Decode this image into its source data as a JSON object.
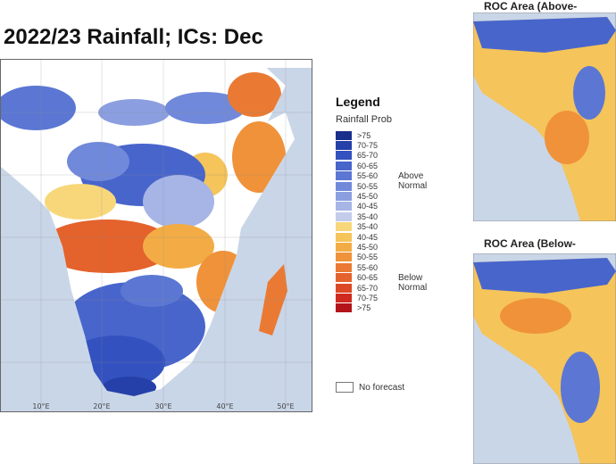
{
  "main": {
    "title": "2022/23 Rainfall; ICs: Dec",
    "lon_ticks": [
      "10°E",
      "20°E",
      "30°E",
      "40°E",
      "50°E"
    ]
  },
  "legend": {
    "title": "Legend",
    "subtitle": "Rainfall Prob",
    "items": [
      {
        "label": ">75",
        "color": "#1a2e8c"
      },
      {
        "label": "70-75",
        "color": "#2540a8"
      },
      {
        "label": "65-70",
        "color": "#3452bf"
      },
      {
        "label": "60-65",
        "color": "#4865cc"
      },
      {
        "label": "55-60",
        "color": "#5b77d3"
      },
      {
        "label": "50-55",
        "color": "#7189da"
      },
      {
        "label": "45-50",
        "color": "#8b9fe0"
      },
      {
        "label": "40-45",
        "color": "#a6b5e6"
      },
      {
        "label": "35-40",
        "color": "#c3cceb"
      },
      {
        "label": "35-40",
        "color": "#f7d77a"
      },
      {
        "label": "40-45",
        "color": "#f5c45a"
      },
      {
        "label": "45-50",
        "color": "#f3ac45"
      },
      {
        "label": "50-55",
        "color": "#ef923a"
      },
      {
        "label": "55-60",
        "color": "#ea7a33"
      },
      {
        "label": "60-65",
        "color": "#e4622c"
      },
      {
        "label": "65-70",
        "color": "#dc4826"
      },
      {
        "label": "70-75",
        "color": "#cf2a1f"
      },
      {
        "label": ">75",
        "color": "#b3141a"
      }
    ],
    "above_normal": "Above Normal",
    "below_normal": "Below Normal",
    "no_forecast": "No forecast"
  },
  "roc_above": {
    "title": "ROC Area (Above-"
  },
  "roc_below": {
    "title": "ROC Area (Below-"
  },
  "colors": {
    "ocean": "#c9d6e8",
    "land_nodata": "#ffffff",
    "border": "#555555"
  }
}
